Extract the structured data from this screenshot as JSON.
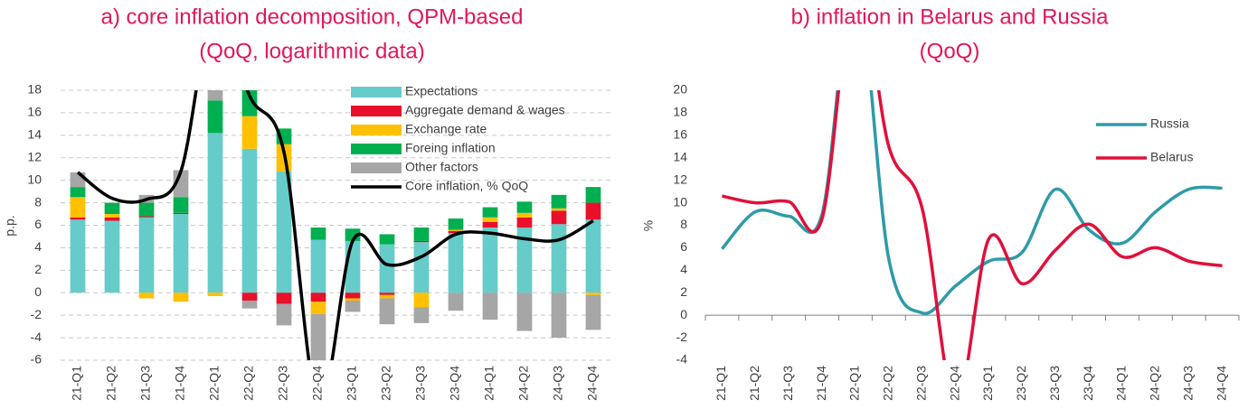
{
  "chart_data": [
    {
      "type": "bar",
      "stacked": true,
      "title": "a) core inflation decomposition, QPM-based",
      "subtitle": "(QoQ, logarithmic data)",
      "ylabel": "p.p.",
      "ylim": [
        -6,
        18
      ],
      "yticks": [
        -6,
        -4,
        -2,
        0,
        2,
        4,
        6,
        8,
        10,
        12,
        14,
        16,
        18
      ],
      "grid": true,
      "legend": "upper center",
      "categories": [
        "21-Q1",
        "21-Q2",
        "21-Q3",
        "21-Q4",
        "22-Q1",
        "22-Q2",
        "22-Q3",
        "22-Q4",
        "23-Q1",
        "23-Q2",
        "23-Q3",
        "23-Q4",
        "24-Q1",
        "24-Q2",
        "24-Q3",
        "24-Q4"
      ],
      "series": [
        {
          "name": "Expectations",
          "color": "#66ccc9",
          "values": [
            6.5,
            6.4,
            6.7,
            7.0,
            14.2,
            12.8,
            10.8,
            4.7,
            4.6,
            4.3,
            4.5,
            5.3,
            5.8,
            5.8,
            6.1,
            6.5
          ]
        },
        {
          "name": "Aggregate demand & wages",
          "color": "#e8102a",
          "values": [
            0.2,
            0.3,
            0.1,
            0.1,
            0,
            -0.7,
            -1.0,
            -0.8,
            -0.5,
            -0.2,
            0.1,
            0.2,
            0.5,
            0.9,
            1.2,
            1.5
          ]
        },
        {
          "name": "Exchange rate",
          "color": "#ffc000",
          "values": [
            1.8,
            0.3,
            -0.5,
            -0.8,
            -0.3,
            2.9,
            2.4,
            -1.1,
            -0.2,
            -0.3,
            -1.3,
            0.1,
            0.4,
            0.4,
            0.2,
            -0.2
          ]
        },
        {
          "name": "Foreing inflation",
          "color": "#00b050",
          "values": [
            0.9,
            1.0,
            1.2,
            1.4,
            2.9,
            2.3,
            1.4,
            1.1,
            1.1,
            0.9,
            1.2,
            1.0,
            0.9,
            1.0,
            1.2,
            1.4
          ]
        },
        {
          "name": "Other factors",
          "color": "#a6a6a6",
          "values": [
            1.3,
            0,
            0.7,
            2.4,
            1.5,
            -0.7,
            -1.9,
            -4.5,
            -1.0,
            -2.3,
            -1.4,
            -1.6,
            -2.4,
            -3.4,
            -4.0,
            -3.1
          ]
        },
        {
          "name": "Core inflation, % QoQ",
          "type": "line",
          "color": "#000000",
          "values": [
            10.7,
            8.4,
            8.3,
            10.8,
            26,
            17.5,
            12.5,
            -10,
            4.6,
            2.5,
            3.2,
            5.2,
            5.3,
            4.8,
            4.7,
            6.4
          ]
        }
      ]
    },
    {
      "type": "line",
      "title": "b) inflation in Belarus and Russia",
      "subtitle": "(QoQ)",
      "ylabel": "%",
      "ylim": [
        -4,
        20
      ],
      "yticks": [
        -4,
        -2,
        0,
        2,
        4,
        6,
        8,
        10,
        12,
        14,
        16,
        18,
        20
      ],
      "grid": false,
      "legend": "upper right",
      "categories": [
        "21-Q1",
        "21-Q2",
        "21-Q3",
        "21-Q4",
        "22-Q1",
        "22-Q2",
        "22-Q3",
        "22-Q4",
        "23-Q1",
        "23-Q2",
        "23-Q3",
        "23-Q4",
        "24-Q1",
        "24-Q2",
        "24-Q3",
        "24-Q4"
      ],
      "series": [
        {
          "name": "Russia",
          "color": "#2e9aa8",
          "values": [
            5.9,
            9.2,
            8.8,
            9.0,
            30,
            5.0,
            0.2,
            2.6,
            4.8,
            5.6,
            11.2,
            7.6,
            6.4,
            9.2,
            11.2,
            11.3
          ]
        },
        {
          "name": "Belarus",
          "color": "#e0103a",
          "values": [
            10.6,
            10.0,
            10.1,
            8.6,
            30,
            15.0,
            9.5,
            -8,
            6.8,
            2.8,
            5.8,
            8.1,
            5.2,
            6.0,
            4.8,
            4.4
          ]
        }
      ]
    }
  ]
}
